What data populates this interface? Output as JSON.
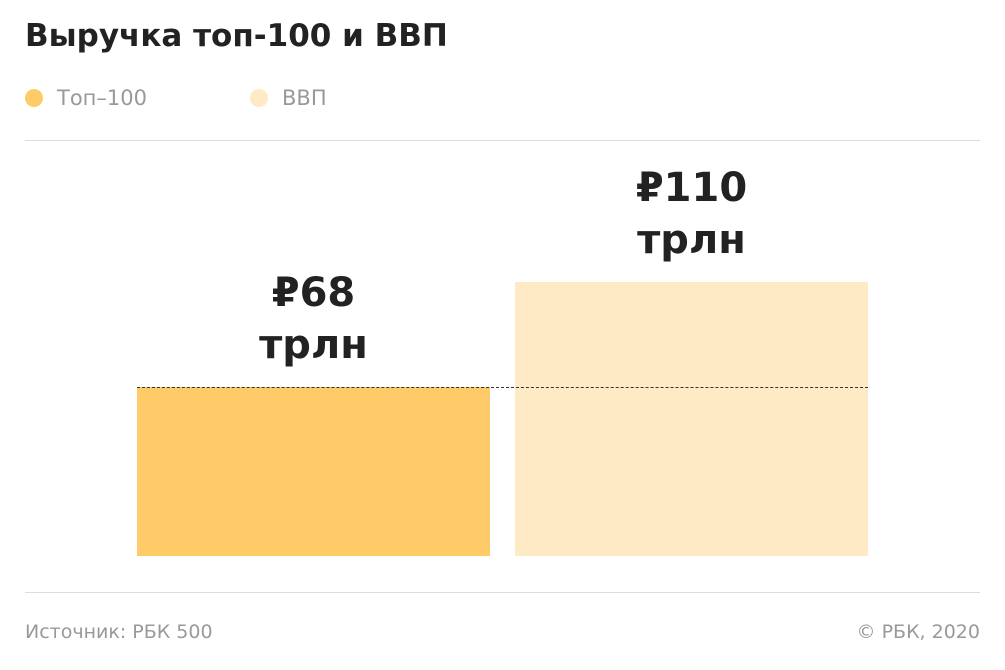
{
  "chart_data": {
    "type": "bar",
    "title": "Выручка топ-100 и ВВП",
    "categories": [
      "Топ–100",
      "ВВП"
    ],
    "values": [
      68,
      110
    ],
    "value_labels": [
      "₽68 трлн",
      "₽110 трлн"
    ],
    "colors": [
      "#ffcb69",
      "#ffeac6"
    ],
    "source": "Источник:  РБК 500",
    "copyright": "©  РБК, 2020"
  }
}
